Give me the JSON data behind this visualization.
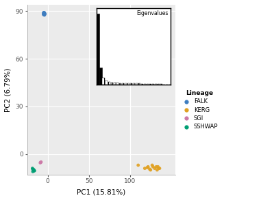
{
  "title": "",
  "xlabel": "PC1 (15.81%)",
  "ylabel": "PC2 (6.79%)",
  "xlim": [
    -25,
    155
  ],
  "ylim": [
    -13,
    94
  ],
  "xticks": [
    0,
    50,
    100
  ],
  "yticks": [
    0,
    30,
    60,
    90
  ],
  "background": "#ebebeb",
  "groups": {
    "FALK": {
      "color": "#3e7dbf",
      "x": [
        -5,
        -4,
        -3.5,
        -4,
        -5,
        -4,
        -3.5,
        -5,
        -4,
        -4.5,
        -3.8,
        -4.2,
        -4.8,
        -4.0
      ],
      "y": [
        89,
        88.5,
        88,
        87.5,
        88.2,
        89,
        88.3,
        87.8,
        88.6,
        89,
        88.1,
        87.9,
        88.4,
        88.7
      ]
    },
    "KERG": {
      "color": "#e0a020",
      "x": [
        110,
        118,
        122,
        125,
        127,
        128,
        130,
        132,
        133,
        134,
        135,
        136,
        121,
        124
      ],
      "y": [
        -7,
        -9,
        -8,
        -10,
        -7,
        -8,
        -9,
        -8,
        -10,
        -8,
        -9,
        -9,
        -8.5,
        -9.5
      ]
    },
    "SGI": {
      "color": "#cc79a7",
      "x": [
        -8,
        -9,
        -8.5
      ],
      "y": [
        -5,
        -5.5,
        -5.2
      ]
    },
    "SSHWAP": {
      "color": "#009e73",
      "x": [
        -18,
        -17,
        -16,
        -18.5,
        -17.5,
        -16.5,
        -18,
        -17
      ],
      "y": [
        -9.5,
        -10,
        -10.5,
        -9,
        -10,
        -10.5,
        -11,
        -9.8
      ]
    }
  },
  "inset": {
    "eigenvalues_solid": [
      90,
      22,
      9,
      5,
      3.5,
      2.8
    ],
    "eigenvalues_hatched": [
      2.4,
      2.2,
      2.0,
      1.9,
      1.8,
      1.7,
      1.6,
      1.5,
      1.4,
      1.3,
      1.2,
      1.1,
      1.0,
      0.9,
      0.8,
      0.7,
      0.6,
      0.5,
      0.4,
      0.3,
      0.25
    ],
    "n_retained": 2
  },
  "legend_title": "Lineage",
  "legend_entries": [
    "FALK",
    "KERG",
    "SGI",
    "SSHWAP"
  ],
  "legend_colors": [
    "#3e7dbf",
    "#e0a020",
    "#cc79a7",
    "#009e73"
  ]
}
